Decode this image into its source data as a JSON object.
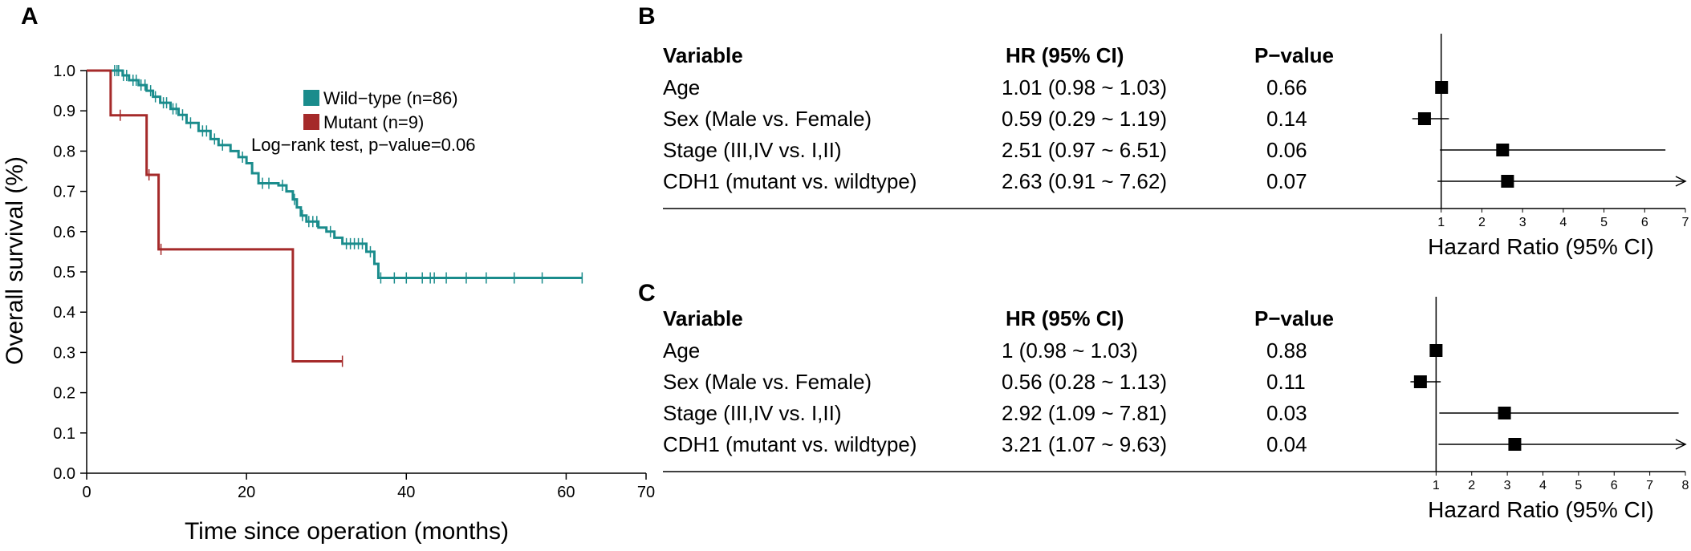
{
  "panels": {
    "A": "A",
    "B": "B",
    "C": "C"
  },
  "km": {
    "xlabel": "Time since operation (months)",
    "ylabel": "Overall survival (%)",
    "xlim": [
      0,
      70
    ],
    "ylim": [
      0,
      1
    ],
    "xticks": [
      "0",
      "20",
      "40",
      "60",
      "70"
    ],
    "xtick_values": [
      0,
      20,
      40,
      60,
      70
    ],
    "yticks": [
      "0.0",
      "0.1",
      "0.2",
      "0.3",
      "0.4",
      "0.5",
      "0.6",
      "0.7",
      "0.8",
      "0.9",
      "1.0"
    ],
    "ytick_values": [
      0,
      0.1,
      0.2,
      0.3,
      0.4,
      0.5,
      0.6,
      0.7,
      0.8,
      0.9,
      1.0
    ],
    "annotation": "Log−rank test, p−value=0.06"
  },
  "chart_data": [
    {
      "type": "line",
      "subtype": "kaplan-meier",
      "xlabel": "Time since operation (months)",
      "ylabel": "Overall survival (%)",
      "xlim": [
        0,
        70
      ],
      "ylim": [
        0,
        1
      ],
      "legend_position": "top-right",
      "series": [
        {
          "name": "Wild−type (n=86)",
          "color": "#1a8c8c",
          "steps": [
            [
              0,
              1.0
            ],
            [
              4.5,
              0.988
            ],
            [
              5.3,
              0.976
            ],
            [
              6.5,
              0.964
            ],
            [
              7.5,
              0.95
            ],
            [
              8.3,
              0.935
            ],
            [
              9.2,
              0.92
            ],
            [
              10.5,
              0.905
            ],
            [
              11.5,
              0.89
            ],
            [
              12.5,
              0.87
            ],
            [
              14.0,
              0.85
            ],
            [
              15.5,
              0.83
            ],
            [
              16.5,
              0.815
            ],
            [
              18.0,
              0.8
            ],
            [
              19.0,
              0.785
            ],
            [
              20.0,
              0.77
            ],
            [
              20.7,
              0.745
            ],
            [
              21.5,
              0.72
            ],
            [
              24.0,
              0.715
            ],
            [
              25.0,
              0.7
            ],
            [
              25.8,
              0.68
            ],
            [
              26.3,
              0.66
            ],
            [
              26.8,
              0.64
            ],
            [
              27.5,
              0.625
            ],
            [
              29.0,
              0.61
            ],
            [
              30.0,
              0.6
            ],
            [
              31.0,
              0.585
            ],
            [
              32.0,
              0.57
            ],
            [
              35.0,
              0.55
            ],
            [
              36.0,
              0.52
            ],
            [
              36.5,
              0.485
            ],
            [
              62.0,
              0.485
            ]
          ],
          "censored_x": [
            3.5,
            3.8,
            4.0,
            4.6,
            5.0,
            5.8,
            6.2,
            6.8,
            7.3,
            8.0,
            8.6,
            9.6,
            10.0,
            10.8,
            11.2,
            12.0,
            13.0,
            14.5,
            15.0,
            16.0,
            17.0,
            19.5,
            22.0,
            22.8,
            24.5,
            26.0,
            27.0,
            27.8,
            28.3,
            28.8,
            30.5,
            32.5,
            33.0,
            33.5,
            34.0,
            34.5,
            35.5,
            36.8,
            38.5,
            40.0,
            42.0,
            43.0,
            43.5,
            45.0,
            47.5,
            50.0,
            53.5,
            57.0,
            62.0
          ]
        },
        {
          "name": "Mutant (n=9)",
          "color": "#a52a2a",
          "steps": [
            [
              0,
              1.0
            ],
            [
              3.0,
              0.889
            ],
            [
              7.5,
              0.741
            ],
            [
              9.0,
              0.556
            ],
            [
              25.8,
              0.278
            ],
            [
              32.0,
              0.278
            ]
          ],
          "censored_x": [
            4.2,
            7.8,
            9.3,
            32.0
          ]
        }
      ]
    },
    {
      "type": "forest",
      "panel": "B",
      "xlabel": "Hazard Ratio (95% CI)",
      "xlim": [
        0,
        7
      ],
      "xticks": [
        1,
        2,
        3,
        4,
        5,
        6,
        7
      ],
      "rows": [
        {
          "variable": "Age",
          "hr": 1.01,
          "lo": 0.98,
          "hi": 1.03,
          "hr_text": "1.01 (0.98 ~ 1.03)",
          "p": "0.66"
        },
        {
          "variable": "Sex (Male vs. Female)",
          "hr": 0.59,
          "lo": 0.29,
          "hi": 1.19,
          "hr_text": "0.59 (0.29 ~ 1.19)",
          "p": "0.14"
        },
        {
          "variable": "Stage (III,IV vs. I,II)",
          "hr": 2.51,
          "lo": 0.97,
          "hi": 6.51,
          "hr_text": "2.51 (0.97 ~ 6.51)",
          "p": "0.06"
        },
        {
          "variable": "CDH1 (mutant vs. wildtype)",
          "hr": 2.63,
          "lo": 0.91,
          "hi": 7.62,
          "hr_text": "2.63 (0.91 ~ 7.62)",
          "p": "0.07"
        }
      ]
    },
    {
      "type": "forest",
      "panel": "C",
      "xlabel": "Hazard Ratio (95% CI)",
      "xlim": [
        0,
        8
      ],
      "xticks": [
        1,
        2,
        3,
        4,
        5,
        6,
        7,
        8
      ],
      "rows": [
        {
          "variable": "Age",
          "hr": 1.0,
          "lo": 0.98,
          "hi": 1.03,
          "hr_text": "1 (0.98 ~ 1.03)",
          "p": "0.88"
        },
        {
          "variable": "Sex (Male vs. Female)",
          "hr": 0.56,
          "lo": 0.28,
          "hi": 1.13,
          "hr_text": "0.56 (0.28 ~ 1.13)",
          "p": "0.11"
        },
        {
          "variable": "Stage (III,IV vs. I,II)",
          "hr": 2.92,
          "lo": 1.09,
          "hi": 7.81,
          "hr_text": "2.92 (1.09 ~ 7.81)",
          "p": "0.03"
        },
        {
          "variable": "CDH1 (mutant vs. wildtype)",
          "hr": 3.21,
          "lo": 1.07,
          "hi": 9.63,
          "hr_text": "3.21 (1.07 ~ 9.63)",
          "p": "0.04"
        }
      ]
    }
  ],
  "forest_headers": {
    "variable": "Variable",
    "hr": "HR (95% CI)",
    "p": "P−value"
  }
}
